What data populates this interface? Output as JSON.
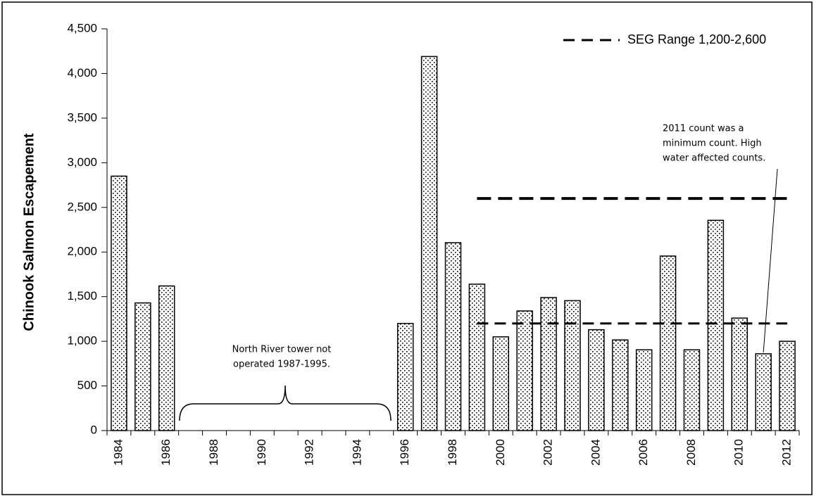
{
  "chart_data": {
    "type": "bar",
    "y_label": "Chinook Salmon Escapement",
    "x": [
      1984,
      1985,
      1986,
      1987,
      1988,
      1989,
      1990,
      1991,
      1992,
      1993,
      1994,
      1995,
      1996,
      1997,
      1998,
      1999,
      2000,
      2001,
      2002,
      2003,
      2004,
      2005,
      2006,
      2007,
      2008,
      2009,
      2010,
      2011,
      2012
    ],
    "values": [
      2850,
      1430,
      1620,
      null,
      null,
      null,
      null,
      null,
      null,
      null,
      null,
      null,
      1200,
      4190,
      2105,
      1640,
      1050,
      1340,
      1490,
      1455,
      1130,
      1015,
      905,
      1955,
      905,
      2355,
      1260,
      860,
      1000
    ],
    "xlim": [
      1983.5,
      2012.5
    ],
    "xticks": [
      1984,
      1986,
      1988,
      1990,
      1992,
      1994,
      1996,
      1998,
      2000,
      2002,
      2004,
      2006,
      2008,
      2010,
      2012
    ],
    "ylim": [
      0,
      4500
    ],
    "yticks": [
      0,
      500,
      {
        "value": 1000,
        "label": "1,000"
      },
      {
        "value": 1500,
        "label": "1,500"
      },
      {
        "value": 2000,
        "label": "2,000"
      },
      {
        "value": 2500,
        "label": "2,500"
      },
      {
        "value": 3000,
        "label": "3,000"
      },
      {
        "value": 3500,
        "label": "3,500"
      },
      {
        "value": 4000,
        "label": "4,000"
      },
      {
        "value": 4500,
        "label": "4,500"
      }
    ],
    "reference": {
      "name": "SEG Range 1,200-2,600",
      "values": [
        1200,
        2600
      ],
      "x": [
        1999,
        2012
      ],
      "color": "#000000"
    },
    "legend": "top-right",
    "color": "#000000",
    "annotations": [
      {
        "lines": [
          "North River tower not",
          "operated 1987-1995."
        ]
      },
      {
        "lines": [
          "2011 count was a",
          "minimum count.  High",
          "water affected counts."
        ],
        "x": 2011
      }
    ]
  }
}
